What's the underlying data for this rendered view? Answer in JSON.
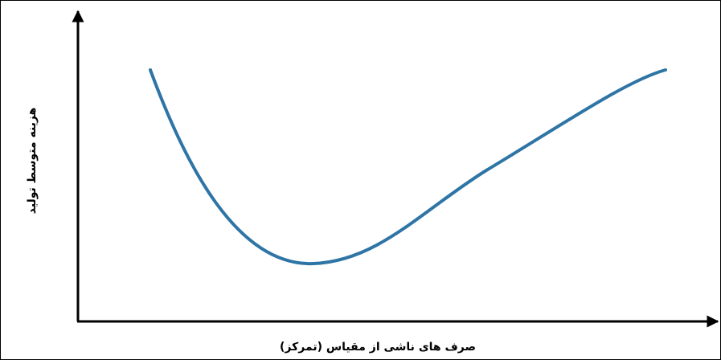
{
  "chart_data": {
    "type": "line",
    "x_label": "صرف های ناشی از مقیاس (تمرکز)",
    "y_label": "هزینه متوسط تولید",
    "color": "#2e75a6"
  }
}
